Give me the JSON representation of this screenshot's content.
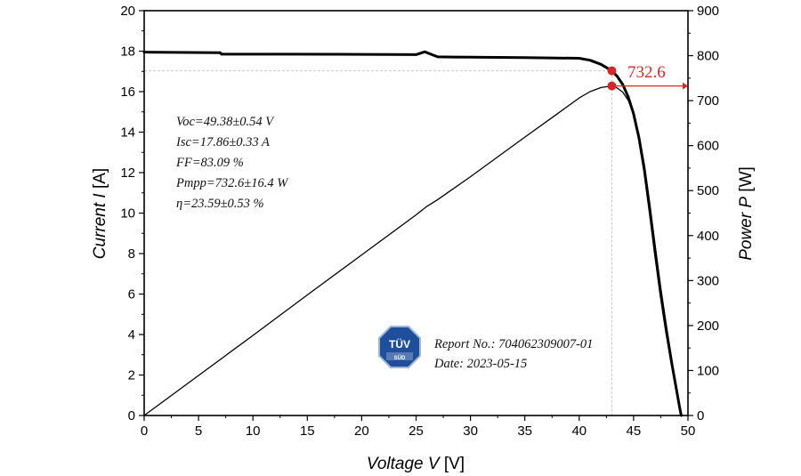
{
  "chart_data": {
    "type": "line",
    "xlabel": {
      "italic": "Voltage V",
      "unit": " [V]"
    },
    "ylabel_left": {
      "italic": "Current I",
      "unit": " [A]"
    },
    "ylabel_right": {
      "italic": "Power P",
      "unit": " [W]"
    },
    "xlim": [
      0,
      50
    ],
    "ylim_left": [
      0,
      20
    ],
    "ylim_right": [
      0,
      900
    ],
    "x_ticks": [
      "0",
      "5",
      "10",
      "15",
      "20",
      "25",
      "30",
      "35",
      "40",
      "45",
      "50"
    ],
    "y_left_ticks": [
      "0",
      "2",
      "4",
      "6",
      "8",
      "10",
      "12",
      "14",
      "16",
      "18",
      "20"
    ],
    "y_right_ticks": [
      "0",
      "100",
      "200",
      "300",
      "400",
      "500",
      "600",
      "700",
      "800",
      "900"
    ],
    "grid": false,
    "series": [
      {
        "axis": "left",
        "color": "#000000",
        "x": [
          0,
          7,
          7.1,
          12,
          20,
          25,
          25.8,
          26.5,
          27,
          30,
          35,
          38,
          40,
          41,
          42,
          43,
          43.5,
          44,
          44.5,
          45,
          45.5,
          46,
          46.5,
          47,
          47.5,
          48,
          48.5,
          49,
          49.2,
          49.38
        ],
        "y": [
          17.95,
          17.92,
          17.85,
          17.85,
          17.84,
          17.83,
          17.97,
          17.82,
          17.72,
          17.7,
          17.68,
          17.66,
          17.65,
          17.55,
          17.35,
          17.03,
          16.75,
          16.35,
          15.75,
          14.9,
          13.7,
          12.1,
          10.1,
          8.0,
          6.0,
          4.2,
          2.6,
          1.1,
          0.5,
          0
        ]
      },
      {
        "axis": "right",
        "color": "#000000",
        "x": [
          0,
          5,
          10,
          15,
          20,
          25,
          26,
          27,
          30,
          35,
          38,
          40,
          41,
          42,
          43,
          43.5,
          44,
          44.5,
          45,
          45.5,
          46,
          46.5,
          47,
          47.5,
          48,
          48.5,
          49,
          49.38
        ],
        "y": [
          0,
          89,
          178,
          268,
          357,
          446,
          465,
          480,
          531,
          619,
          671,
          706,
          720,
          729,
          732.6,
          728,
          719,
          701,
          670,
          624,
          557,
          470,
          376,
          285,
          202,
          126,
          54,
          0
        ]
      }
    ],
    "mpp": {
      "voltage": 43.0,
      "current": 17.03,
      "power": 732.6,
      "label": "732.6",
      "color": "#d62728"
    },
    "annotations": [
      "Voc=49.38±0.54 V",
      "Isc=17.86±0.33 A",
      "FF=83.09 %",
      "Pmpp=732.6±16.4 W",
      "η=23.59±0.53 %"
    ],
    "report": {
      "logo_top": "TÜV",
      "logo_bottom": "SÜD",
      "report_no": "Report No.: 704062309007-01",
      "date": "Date: 2023-05-15",
      "logo_color": "#1f4e9a"
    }
  }
}
